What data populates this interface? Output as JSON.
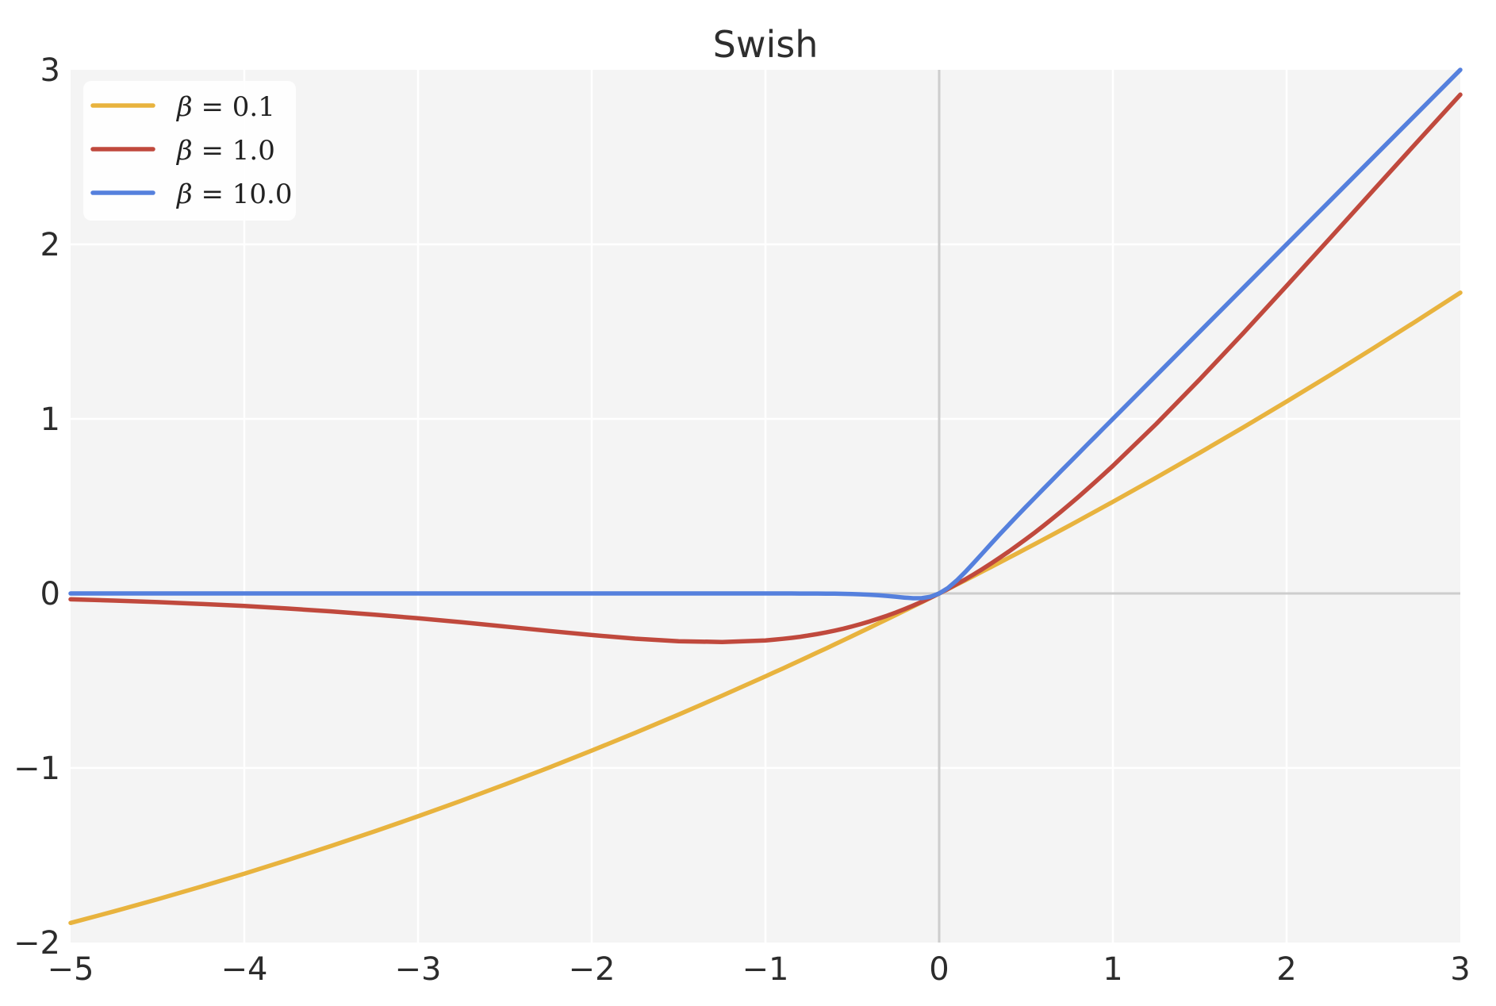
{
  "figure": {
    "title": "Swish",
    "background": "#ffffff",
    "plot_background": "#f4f4f4",
    "grid_color": "#ffffff",
    "zero_line_color": "#cdcdcd",
    "text_color": "#2c2c2c"
  },
  "legend": {
    "position": "upper left",
    "items": [
      {
        "symbol": "β",
        "suffix": " = 0.1",
        "label": "β = 0.1",
        "color": "#e8b33e"
      },
      {
        "symbol": "β",
        "suffix": " = 1.0",
        "label": "β = 1.0",
        "color": "#c0493d"
      },
      {
        "symbol": "β",
        "suffix": " = 10.0",
        "label": "β = 10.0",
        "color": "#5580dd"
      }
    ]
  },
  "chart_data": {
    "type": "line",
    "title": "Swish",
    "xlabel": "",
    "ylabel": "",
    "xlim": [
      -5,
      3
    ],
    "ylim": [
      -2,
      3
    ],
    "grid": true,
    "legend_position": "upper left",
    "x_ticks": [
      -5,
      -4,
      -3,
      -2,
      -1,
      0,
      1,
      2,
      3
    ],
    "y_ticks": [
      -2,
      -1,
      0,
      1,
      2,
      3
    ],
    "x_tick_labels": [
      "−5",
      "−4",
      "−3",
      "−2",
      "−1",
      "0",
      "1",
      "2",
      "3"
    ],
    "y_tick_labels": [
      "−2",
      "−1",
      "0",
      "1",
      "2",
      "3"
    ],
    "x": [
      -5,
      -4.75,
      -4.5,
      -4.25,
      -4,
      -3.75,
      -3.5,
      -3.25,
      -3,
      -2.75,
      -2.5,
      -2.25,
      -2,
      -1.75,
      -1.5,
      -1.25,
      -1,
      -0.95,
      -0.9,
      -0.85,
      -0.8,
      -0.75,
      -0.7,
      -0.65,
      -0.6,
      -0.55,
      -0.5,
      -0.45,
      -0.4,
      -0.35,
      -0.3,
      -0.25,
      -0.2,
      -0.15,
      -0.1,
      -0.05,
      0,
      0.05,
      0.1,
      0.15,
      0.2,
      0.25,
      0.3,
      0.35,
      0.4,
      0.45,
      0.5,
      0.55,
      0.6,
      0.65,
      0.7,
      0.75,
      0.8,
      0.85,
      0.9,
      0.95,
      1,
      1.25,
      1.5,
      1.75,
      2,
      2.25,
      2.5,
      2.75,
      3
    ],
    "series": [
      {
        "name": "beta=0.1",
        "label": "β = 0.1",
        "color": "#e8b33e",
        "y": [
          -1.8877,
          -1.8213,
          -1.7521,
          -1.6801,
          -1.6053,
          -1.5275,
          -1.4468,
          -1.3632,
          -1.2767,
          -1.1871,
          -1.0946,
          -0.999,
          -0.9003,
          -0.7986,
          -0.6939,
          -0.586,
          -0.475,
          -0.4524,
          -0.4298,
          -0.4069,
          -0.384,
          -0.3609,
          -0.3378,
          -0.3144,
          -0.291,
          -0.2674,
          -0.2438,
          -0.2199,
          -0.196,
          -0.1719,
          -0.1478,
          -0.1234,
          -0.099,
          -0.0744,
          -0.0498,
          -0.0249,
          0,
          0.0251,
          0.0503,
          0.0756,
          0.101,
          0.1266,
          0.1523,
          0.1781,
          0.204,
          0.2301,
          0.2563,
          0.2826,
          0.309,
          0.3356,
          0.3622,
          0.3891,
          0.416,
          0.4431,
          0.4703,
          0.4976,
          0.525,
          0.664,
          0.8061,
          0.9514,
          1.0997,
          1.251,
          1.4054,
          1.5629,
          1.7233
        ]
      },
      {
        "name": "beta=1.0",
        "label": "β = 1.0",
        "color": "#c0493d",
        "y": [
          -0.0335,
          -0.0407,
          -0.0494,
          -0.0598,
          -0.0719,
          -0.0862,
          -0.1026,
          -0.1213,
          -0.1423,
          -0.1652,
          -0.1896,
          -0.2145,
          -0.2384,
          -0.2591,
          -0.2736,
          -0.2784,
          -0.2689,
          -0.2649,
          -0.2601,
          -0.2545,
          -0.248,
          -0.2406,
          -0.2323,
          -0.223,
          -0.2126,
          -0.2012,
          -0.1888,
          -0.1752,
          -0.1605,
          -0.1447,
          -0.1277,
          -0.1095,
          -0.09,
          -0.0694,
          -0.0475,
          -0.0244,
          0,
          0.0256,
          0.0525,
          0.0806,
          0.11,
          0.1405,
          0.1723,
          0.2053,
          0.2395,
          0.2748,
          0.3112,
          0.3488,
          0.3874,
          0.4271,
          0.4677,
          0.5094,
          0.552,
          0.5955,
          0.6399,
          0.6851,
          0.7311,
          0.9716,
          1.2264,
          1.4909,
          1.7616,
          2.0355,
          2.3104,
          2.5848,
          2.8577
        ]
      },
      {
        "name": "beta=10.0",
        "label": "β = 10.0",
        "color": "#5580dd",
        "y": [
          0,
          0,
          0,
          0,
          0,
          0,
          0,
          0,
          0,
          0,
          0,
          0,
          0,
          0,
          0,
          0,
          0,
          -0.0001,
          -0.0001,
          -0.0002,
          -0.0003,
          -0.0004,
          -0.0006,
          -0.001,
          -0.0015,
          -0.0022,
          -0.0033,
          -0.0049,
          -0.0072,
          -0.0103,
          -0.0142,
          -0.019,
          -0.0238,
          -0.0274,
          -0.0269,
          -0.0189,
          0,
          0.0311,
          0.0731,
          0.1226,
          0.1762,
          0.231,
          0.2858,
          0.3397,
          0.3928,
          0.4451,
          0.4967,
          0.5478,
          0.5985,
          0.649,
          0.6994,
          0.7496,
          0.7997,
          0.8498,
          0.8999,
          0.9499,
          1,
          1.25,
          1.5,
          1.75,
          2,
          2.25,
          2.5,
          2.75,
          3
        ]
      }
    ]
  }
}
